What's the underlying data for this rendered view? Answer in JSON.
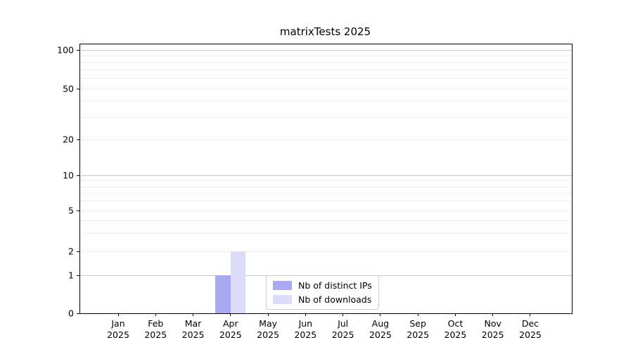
{
  "chart_data": {
    "type": "bar",
    "title": "matrixTests 2025",
    "categories": [
      "Jan",
      "Feb",
      "Mar",
      "Apr",
      "May",
      "Jun",
      "Jul",
      "Aug",
      "Sep",
      "Oct",
      "Nov",
      "Dec"
    ],
    "year_label": "2025",
    "series": [
      {
        "name": "Nb of distinct IPs",
        "color": "#a9a9f2",
        "values": [
          0,
          0,
          0,
          1,
          0,
          0,
          0,
          0,
          0,
          0,
          0,
          0
        ]
      },
      {
        "name": "Nb of downloads",
        "color": "#dcdcf8",
        "values": [
          0,
          0,
          0,
          2,
          0,
          0,
          0,
          0,
          0,
          0,
          0,
          0
        ]
      }
    ],
    "xlabel": "",
    "ylabel": "",
    "yscale": "symlog",
    "yticks": [
      0,
      1,
      2,
      5,
      10,
      20,
      50,
      100
    ],
    "ylim": [
      0,
      110
    ],
    "grid": "horizontal",
    "legend_position": "inside-bottom-center"
  },
  "colors": {
    "background": "#ffffff",
    "axis": "#000000",
    "text": "#000000",
    "grid_major": "#c9c9c9",
    "grid_minor": "#ededed",
    "legend_border": "#cccccc"
  }
}
